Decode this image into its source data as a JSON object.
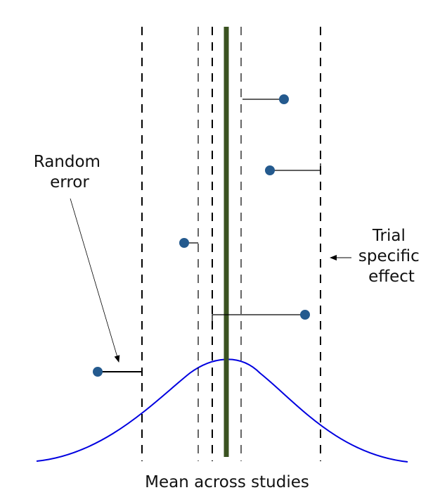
{
  "labels": {
    "random_error": [
      "Random",
      "error"
    ],
    "trial_effect": [
      "Trial",
      "specific",
      "effect"
    ],
    "mean": "Mean across studies"
  },
  "colors": {
    "mean_line": "#3a5220",
    "points": "#245a8e",
    "curve": "#0000e0",
    "lines": "#000000"
  }
}
